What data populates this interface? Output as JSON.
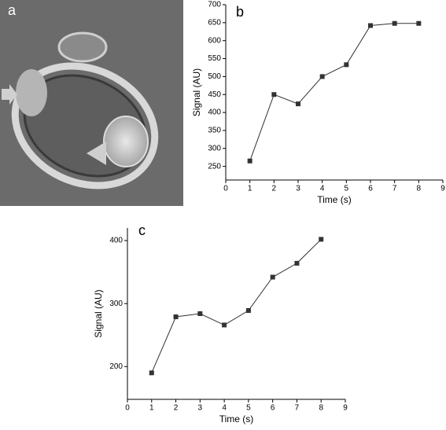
{
  "panel_a": {
    "label": "a"
  },
  "chart_data": [
    {
      "type": "line",
      "label": "b",
      "x_label": "Time (s)",
      "y_label": "Signal (AU)",
      "x": [
        1,
        2,
        3,
        4,
        5,
        6,
        7,
        8
      ],
      "values": [
        265,
        450,
        424,
        500,
        533,
        642,
        648,
        648
      ],
      "color": "#333333",
      "xlim": [
        0,
        9
      ],
      "xticks": [
        0,
        1,
        2,
        3,
        4,
        5,
        6,
        7,
        8,
        9
      ],
      "ylim": [
        212,
        700
      ],
      "yticks": [
        250,
        300,
        350,
        400,
        450,
        500,
        550,
        600,
        650,
        700
      ]
    },
    {
      "type": "line",
      "label": "c",
      "x_label": "Time (s)",
      "y_label": "Signal (AU)",
      "x": [
        1,
        2,
        3,
        4,
        5,
        6,
        7,
        8
      ],
      "values": [
        190,
        279,
        284,
        266,
        289,
        342,
        364,
        402
      ],
      "color": "#333333",
      "xlim": [
        0,
        9
      ],
      "xticks": [
        0,
        1,
        2,
        3,
        4,
        5,
        6,
        7,
        8,
        9
      ],
      "ylim": [
        148,
        420
      ],
      "yticks": [
        200,
        300,
        400
      ]
    }
  ]
}
